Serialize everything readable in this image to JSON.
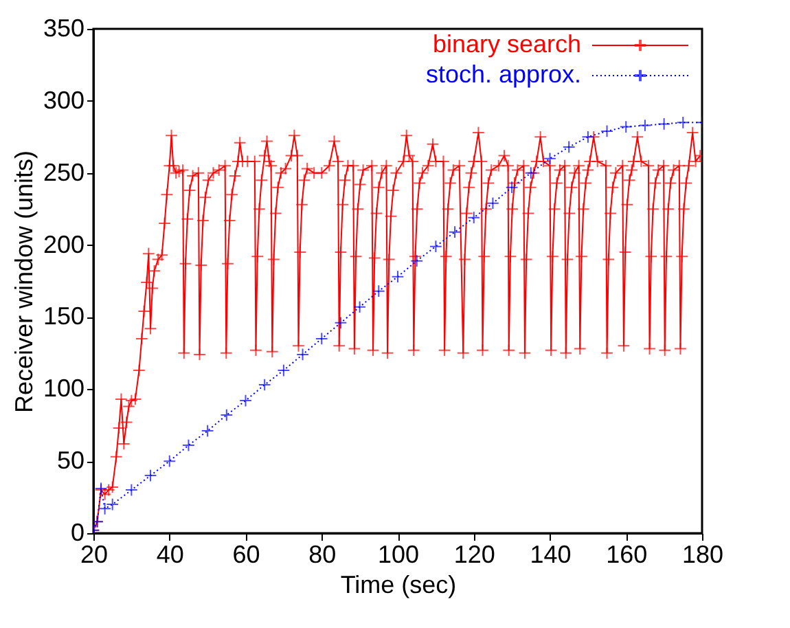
{
  "chart_data": {
    "type": "line",
    "xlabel": "Time (sec)",
    "ylabel": "Receiver window (units)",
    "xlim": [
      20,
      180
    ],
    "xticks": [
      20,
      40,
      60,
      80,
      100,
      120,
      140,
      160,
      180
    ],
    "ylim": [
      0,
      350
    ],
    "yticks": [
      0,
      50,
      100,
      150,
      200,
      250,
      300,
      350
    ],
    "grid": false,
    "legend": "top right",
    "series": [
      {
        "name": "binary search",
        "color": "#ff0000",
        "marker": "cross",
        "line_style": "solid",
        "x": [
          20,
          21,
          22,
          23,
          24,
          25,
          26,
          26.7,
          27.3,
          28,
          28.7,
          29.3,
          30,
          31,
          32,
          32.7,
          33.3,
          34,
          34.5,
          35,
          35.5,
          36,
          37,
          38,
          38.7,
          39.3,
          40,
          40.5,
          41,
          41.7,
          42.5,
          43.5,
          43.8,
          44.2,
          44.7,
          45.3,
          46.1,
          47.6,
          47.9,
          48.3,
          48.8,
          49.4,
          50.2,
          51.5,
          53,
          54.6,
          54.9,
          55.3,
          55.8,
          56.4,
          57.2,
          58,
          58.5,
          59.2,
          60.5,
          62.4,
          62.7,
          63.1,
          63.6,
          64.2,
          65,
          65.6,
          66.2,
          66.7,
          67,
          67.4,
          67.9,
          68.5,
          69.3,
          70.5,
          72,
          72.8,
          73.6,
          73.9,
          74.3,
          74.8,
          75.4,
          76.2,
          78,
          80,
          82,
          83.3,
          84.3,
          84.6,
          85,
          85.5,
          86.1,
          86.9,
          88.3,
          88.6,
          89,
          89.5,
          90.1,
          90.9,
          93.2,
          93.5,
          93.9,
          94.4,
          95,
          95.8,
          97,
          97.3,
          97.7,
          98.2,
          98.8,
          99.6,
          101.5,
          102.3,
          103,
          103.9,
          104.2,
          104.6,
          105.1,
          105.7,
          106.5,
          108,
          109.2,
          110,
          112,
          112.3,
          112.7,
          113.2,
          113.8,
          114.6,
          116.2,
          117.2,
          117.6,
          118.1,
          118.7,
          119.3,
          120,
          121.2,
          122,
          122.3,
          122.7,
          123.2,
          123.8,
          124.6,
          126.5,
          128,
          129,
          129.2,
          129.6,
          130.1,
          130.7,
          131.5,
          133.1,
          133.4,
          133.8,
          134.3,
          134.9,
          135.7,
          136.5,
          137.5,
          138.3,
          140,
          140.3,
          140.7,
          141.2,
          141.8,
          142.6,
          143.9,
          144.2,
          144.6,
          145.1,
          145.7,
          146.5,
          147.6,
          147.9,
          148.3,
          148.8,
          149.4,
          150,
          150.5,
          151.5,
          152.5,
          154.7,
          155,
          155.4,
          155.9,
          156.5,
          157.3,
          159.1,
          159.4,
          159.8,
          160.3,
          160.9,
          161.5,
          162,
          163,
          164,
          165.9,
          166.2,
          166.6,
          167.1,
          167.7,
          168.5,
          169.9,
          170.2,
          170.6,
          171.1,
          171.7,
          172.5,
          174,
          174.3,
          174.7,
          175.2,
          175.8,
          176.5,
          177.5,
          178.3,
          179.5
        ],
        "values": [
          2,
          8,
          30,
          27,
          30,
          32,
          53,
          73,
          93,
          62,
          77,
          88,
          92,
          93,
          113,
          135,
          154,
          174,
          194,
          142,
          170,
          182,
          190,
          193,
          215,
          235,
          255,
          276,
          255,
          250,
          251,
          252,
          125,
          187,
          218,
          238,
          248,
          250,
          124,
          186,
          217,
          233,
          245,
          250,
          252,
          255,
          125,
          187,
          217,
          235,
          248,
          258,
          271,
          258,
          258,
          258,
          127,
          192,
          225,
          245,
          262,
          272,
          258,
          255,
          126,
          190,
          222,
          240,
          250,
          253,
          262,
          276,
          262,
          130,
          195,
          228,
          245,
          253,
          250,
          250,
          255,
          272,
          258,
          130,
          195,
          228,
          245,
          255,
          255,
          128,
          192,
          225,
          242,
          252,
          255,
          127,
          191,
          222,
          240,
          250,
          255,
          125,
          190,
          220,
          238,
          250,
          258,
          276,
          262,
          258,
          127,
          192,
          225,
          243,
          250,
          255,
          270,
          258,
          258,
          127,
          192,
          225,
          243,
          252,
          255,
          125,
          190,
          222,
          240,
          250,
          258,
          278,
          258,
          127,
          192,
          225,
          243,
          252,
          255,
          262,
          255,
          127,
          192,
          225,
          243,
          252,
          255,
          125,
          190,
          222,
          240,
          250,
          258,
          275,
          258,
          255,
          127,
          192,
          225,
          243,
          252,
          255,
          125,
          190,
          222,
          240,
          250,
          255,
          128,
          192,
          225,
          243,
          252,
          258,
          275,
          258,
          255,
          125,
          190,
          222,
          240,
          250,
          255,
          130,
          195,
          228,
          245,
          252,
          258,
          275,
          258,
          255,
          128,
          192,
          225,
          243,
          252,
          255,
          127,
          192,
          225,
          243,
          252,
          255,
          128,
          192,
          225,
          243,
          255,
          278,
          258,
          262
        ]
      },
      {
        "name": "stoch. approx.",
        "color": "#0000ff",
        "marker": "cross",
        "line_style": "dotted",
        "x": [
          20,
          21,
          22,
          23,
          25,
          30,
          35,
          40,
          45,
          50,
          55,
          60,
          65,
          70,
          75,
          80,
          85,
          90,
          95,
          100,
          105,
          110,
          115,
          120,
          125,
          130,
          135,
          140,
          145,
          150,
          155,
          160,
          165,
          170,
          175,
          180
        ],
        "values": [
          2,
          8,
          31,
          17,
          20,
          30,
          40,
          50,
          61,
          71,
          82,
          92,
          103,
          113,
          124,
          135,
          146,
          157,
          168,
          178,
          189,
          199,
          209,
          219,
          229,
          240,
          250,
          260,
          268,
          275,
          279,
          282,
          283,
          284,
          285,
          285
        ]
      }
    ]
  }
}
